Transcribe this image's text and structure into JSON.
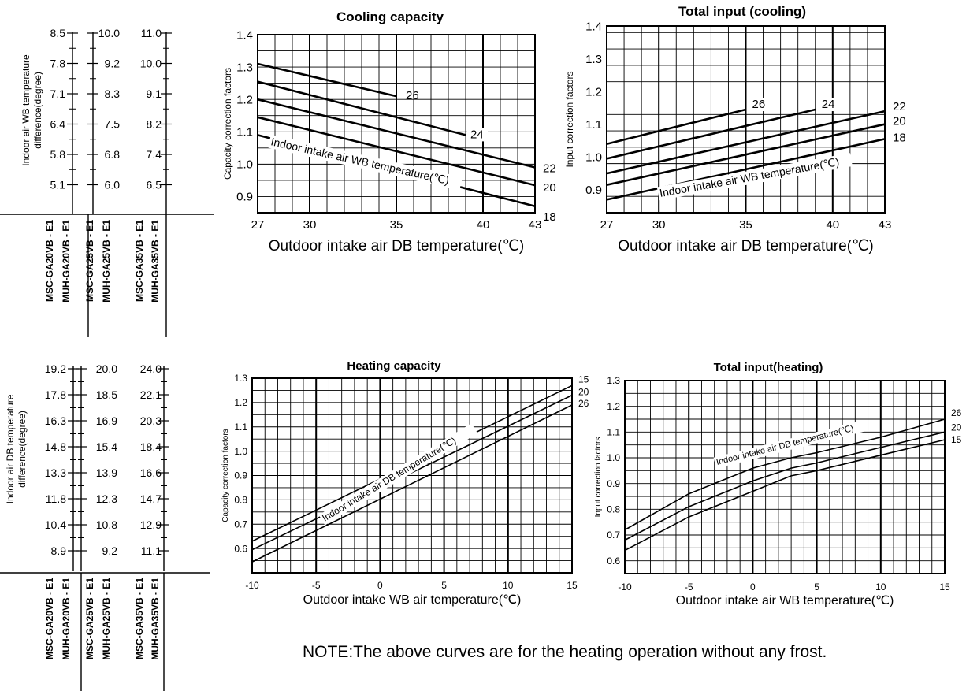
{
  "note": "NOTE:The above curves are for the heating operation without any frost.",
  "legend_tables": [
    {
      "axis_label": [
        "Indoor air WB temperature",
        "difference(degree)"
      ],
      "rows": [
        [
          "8.5",
          "10.0",
          "11.0"
        ],
        [
          "7.8",
          "9.2",
          "10.0"
        ],
        [
          "7.1",
          "8.3",
          "9.1"
        ],
        [
          "6.4",
          "7.5",
          "8.2"
        ],
        [
          "5.8",
          "6.8",
          "7.4"
        ],
        [
          "5.1",
          "6.0",
          "6.5"
        ]
      ],
      "models": [
        [
          "MSC-GA20VB - E1",
          "MUH-GA20VB - E1"
        ],
        [
          "MSC-GA25VB - E1",
          "MUH-GA25VB - E1"
        ],
        [
          "MSC-GA35VB - E1",
          "MUH-GA35VB - E1"
        ]
      ]
    },
    {
      "axis_label": [
        "Indoor air DB temperature",
        "difference(degree)"
      ],
      "rows": [
        [
          "19.2",
          "20.0",
          "24.0"
        ],
        [
          "17.8",
          "18.5",
          "22.1"
        ],
        [
          "16.3",
          "16.9",
          "20.3"
        ],
        [
          "14.8",
          "15.4",
          "18.4"
        ],
        [
          "13.3",
          "13.9",
          "16.6"
        ],
        [
          "11.8",
          "12.3",
          "14.7"
        ],
        [
          "10.4",
          "10.8",
          "12.9"
        ],
        [
          "8.9",
          "9.2",
          "11.1"
        ]
      ],
      "models": [
        [
          "MSC-GA20VB - E1",
          "MUH-GA20VB - E1"
        ],
        [
          "MSC-GA25VB - E1",
          "MUH-GA25VB - E1"
        ],
        [
          "MSC-GA35VB - E1",
          "MUH-GA35VB - E1"
        ]
      ]
    }
  ],
  "chart_data": [
    {
      "type": "line",
      "title": "Cooling capacity",
      "xlabel": "Outdoor intake air DB temperature(℃)",
      "ylabel": "Capacity correction factors",
      "xlim": [
        27,
        43
      ],
      "ylim": [
        0.85,
        1.4
      ],
      "xticks": [
        "27",
        "30",
        "35",
        "40",
        "43"
      ],
      "yticks": [
        "0.9",
        "1.0",
        "1.1",
        "1.2",
        "1.3",
        "1.4"
      ],
      "grid": true,
      "annotation": "Indoor intake air WB temperature(℃)",
      "series": [
        {
          "name": "26",
          "x": [
            27,
            35
          ],
          "y": [
            1.31,
            1.21
          ]
        },
        {
          "name": "24",
          "x": [
            27,
            39
          ],
          "y": [
            1.255,
            1.09
          ]
        },
        {
          "name": "22",
          "x": [
            27,
            43
          ],
          "y": [
            1.2,
            0.99
          ]
        },
        {
          "name": "20",
          "x": [
            27,
            43
          ],
          "y": [
            1.145,
            0.935
          ]
        },
        {
          "name": "18",
          "x": [
            27,
            43
          ],
          "y": [
            1.09,
            0.87
          ]
        }
      ]
    },
    {
      "type": "line",
      "title": "Total input (cooling)",
      "xlabel": "Outdoor intake air DB temperature(℃)",
      "ylabel": "Input correction factors",
      "xlim": [
        27,
        43
      ],
      "ylim": [
        0.83,
        1.4
      ],
      "xticks": [
        "27",
        "30",
        "35",
        "40",
        "43"
      ],
      "yticks": [
        "0.9",
        "1.0",
        "1.1",
        "1.2",
        "1.3",
        "1.4"
      ],
      "grid": true,
      "annotation": "Indoor intake air WB temperature(℃)",
      "series": [
        {
          "name": "26",
          "x": [
            27,
            35
          ],
          "y": [
            1.04,
            1.145
          ]
        },
        {
          "name": "24",
          "x": [
            27,
            39
          ],
          "y": [
            0.995,
            1.145
          ]
        },
        {
          "name": "22",
          "x": [
            27,
            43
          ],
          "y": [
            0.95,
            1.14
          ]
        },
        {
          "name": "20",
          "x": [
            27,
            43
          ],
          "y": [
            0.915,
            1.1
          ]
        },
        {
          "name": "18",
          "x": [
            27,
            43
          ],
          "y": [
            0.87,
            1.055
          ]
        }
      ]
    },
    {
      "type": "line",
      "title": "Heating capacity",
      "xlabel": "Outdoor intake  WB  air temperature(℃)",
      "ylabel": "Capacity correction factors",
      "xlim": [
        -10,
        15
      ],
      "ylim": [
        0.5,
        1.3
      ],
      "xticks": [
        "-10",
        "-5",
        "0",
        "5",
        "10",
        "15"
      ],
      "yticks": [
        "0.6",
        "0.7",
        "0.8",
        "0.9",
        "1.0",
        "1.1",
        "1.2",
        "1.3"
      ],
      "grid": true,
      "annotation": "Indoor intake air  DB  temperature(℃)",
      "series": [
        {
          "name": "15",
          "x": [
            -10,
            15
          ],
          "y": [
            0.63,
            1.27
          ]
        },
        {
          "name": "20",
          "x": [
            -10,
            15
          ],
          "y": [
            0.595,
            1.23
          ]
        },
        {
          "name": "26",
          "x": [
            -10,
            15
          ],
          "y": [
            0.545,
            1.19
          ]
        }
      ]
    },
    {
      "type": "line",
      "title": "Total input(heating)",
      "xlabel": "Outdoor intake air WB temperature(℃)",
      "ylabel": "Input correction factors",
      "xlim": [
        -10,
        15
      ],
      "ylim": [
        0.55,
        1.3
      ],
      "xticks": [
        "-10",
        "-5",
        "0",
        "5",
        "10",
        "15"
      ],
      "yticks": [
        "0.6",
        "0.7",
        "0.8",
        "0.9",
        "1.0",
        "1.1",
        "1.2",
        "1.3"
      ],
      "grid": true,
      "annotation": "Indoor intake air DB temperature(℃)",
      "series": [
        {
          "name": "26",
          "x": [
            -10,
            -5,
            0,
            3,
            5,
            10,
            15
          ],
          "y": [
            0.72,
            0.86,
            0.96,
            1.0,
            1.02,
            1.08,
            1.15
          ]
        },
        {
          "name": "20",
          "x": [
            -10,
            -5,
            0,
            3,
            5,
            10,
            15
          ],
          "y": [
            0.68,
            0.81,
            0.91,
            0.96,
            0.98,
            1.04,
            1.1
          ]
        },
        {
          "name": "15",
          "x": [
            -10,
            -5,
            0,
            3,
            5,
            10,
            15
          ],
          "y": [
            0.64,
            0.77,
            0.87,
            0.93,
            0.95,
            1.01,
            1.07
          ]
        }
      ]
    }
  ]
}
